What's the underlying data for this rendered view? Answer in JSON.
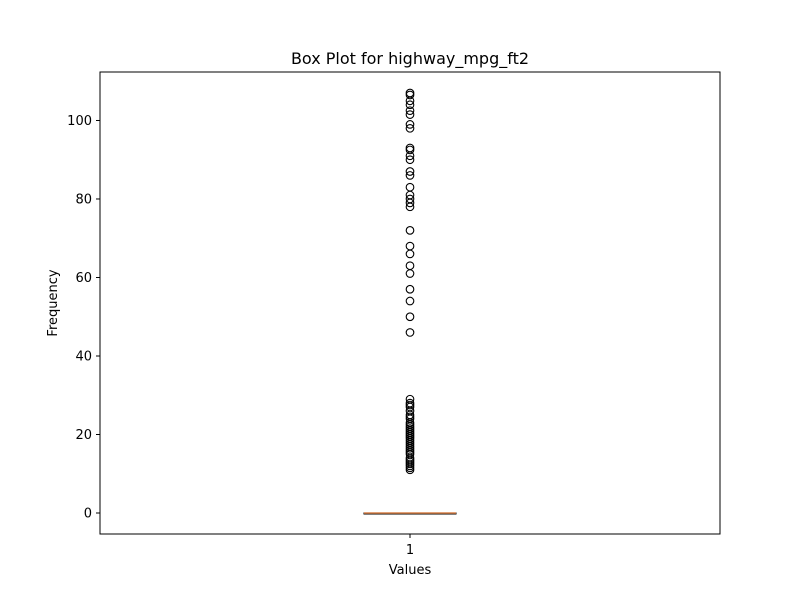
{
  "chart_data": {
    "type": "box",
    "title": "Box Plot for highway_mpg_ft2",
    "xlabel": "Values",
    "ylabel": "Frequency",
    "categories": [
      "1"
    ],
    "yticks": [
      0,
      20,
      40,
      60,
      80,
      100
    ],
    "ylim": [
      -5.35,
      112.35
    ],
    "grid": false,
    "series": [
      {
        "box": {
          "whisker_low": 0,
          "q1": 0,
          "median": 0,
          "q3": 0,
          "whisker_high": 0
        },
        "outliers": [
          11,
          11.5,
          12,
          12.5,
          13,
          13.5,
          14,
          15,
          15.5,
          16,
          16.5,
          17,
          17.5,
          18,
          18.5,
          19,
          19.5,
          20,
          20.5,
          21,
          21.5,
          22,
          22.5,
          23,
          24,
          24.5,
          25,
          26,
          27,
          27.5,
          28,
          29,
          46,
          50,
          54,
          57,
          61,
          63,
          66,
          68,
          72,
          78,
          79,
          80,
          81,
          83,
          86,
          87,
          90,
          91,
          92.5,
          93,
          98,
          99,
          101.5,
          102.5,
          104,
          105,
          106.5,
          107
        ],
        "colors": {
          "median": "#d9824a",
          "box": "#000000",
          "outlier": "#000000"
        }
      }
    ]
  }
}
